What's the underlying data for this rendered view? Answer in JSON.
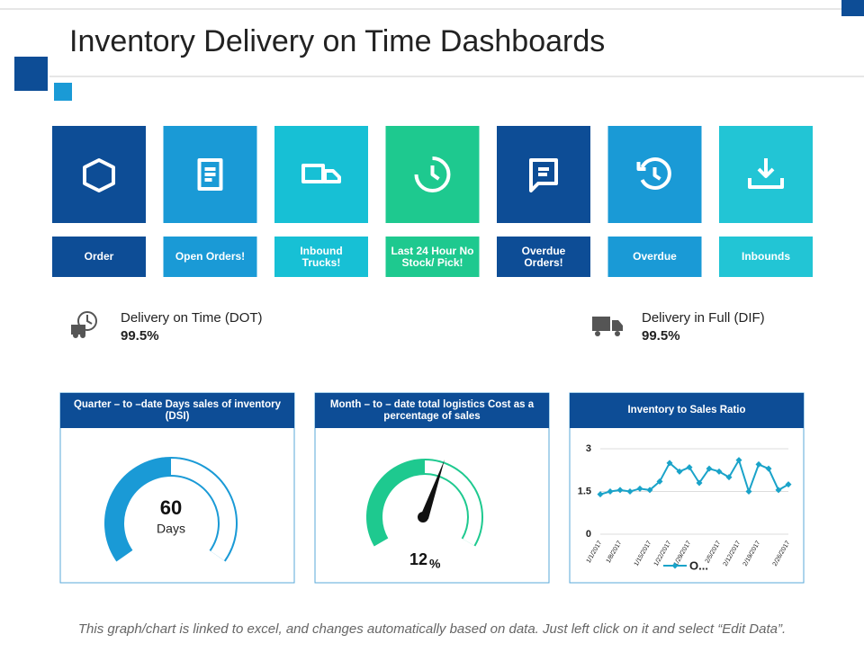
{
  "header": {
    "title": "Inventory Delivery on Time Dashboards"
  },
  "tiles": [
    "Order",
    "Open Orders!",
    "Inbound Trucks!",
    "Last 24 Hour No Stock/ Pick!",
    "Overdue Orders!",
    "Overdue",
    "Inbounds"
  ],
  "kpis": [
    {
      "label": "Delivery on Time (DOT)",
      "value": "99.5%"
    },
    {
      "label": "Delivery in Full (DIF)",
      "value": "99.5%"
    }
  ],
  "panels": [
    {
      "title": "Quarter – to –date Days sales of inventory (DSI)",
      "value": 60,
      "unit": "Days"
    },
    {
      "title": "Month – to – date total logistics Cost as a percentage of sales",
      "value": 12,
      "unit": "%"
    },
    {
      "title": "Inventory to Sales Ratio"
    }
  ],
  "chart_data": {
    "type": "line",
    "categories": [
      "1/1/2017",
      null,
      "1/8/2017",
      null,
      null,
      "1/15/2017",
      null,
      "1/22/2017",
      null,
      "1/29/2017",
      null,
      null,
      "2/5/2017",
      null,
      "2/12/2017",
      null,
      "2/19/2017",
      null,
      null,
      "2/26/2017"
    ],
    "series": [
      {
        "name": "O...",
        "color": "#1aa3c9",
        "values": [
          1.4,
          1.5,
          1.55,
          1.5,
          1.6,
          1.55,
          1.85,
          2.5,
          2.2,
          2.35,
          1.8,
          2.3,
          2.2,
          2.0,
          2.6,
          1.5,
          2.45,
          2.3,
          1.55,
          1.75
        ]
      }
    ],
    "ylim": [
      0,
      3
    ],
    "yticks": [
      0,
      1.5,
      3
    ],
    "grid": true
  },
  "footer": "This graph/chart is linked to excel, and changes automatically based on data. Just left click on it and select “Edit Data”."
}
